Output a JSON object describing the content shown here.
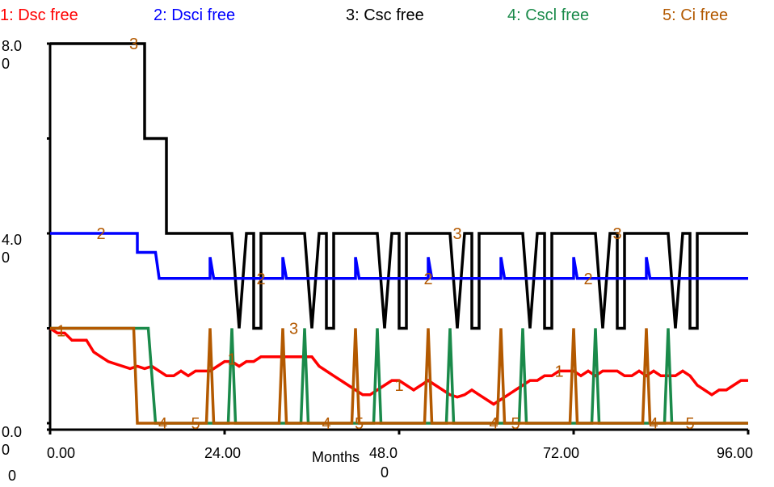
{
  "chart_data": {
    "type": "line",
    "legend": [
      {
        "label": "1: Dsc free",
        "color": "#ff0000"
      },
      {
        "label": "2: Dsci free",
        "color": "#0000ff"
      },
      {
        "label": "3: Csc free",
        "color": "#000000"
      },
      {
        "label": "4: Cscl free",
        "color": "#1a8a4a"
      },
      {
        "label": "5: Ci free",
        "color": "#b35900"
      }
    ],
    "xlabel": "Months",
    "xlim": [
      0,
      96
    ],
    "ylim": [
      0,
      8
    ],
    "y_ticks": [
      {
        "line1": "8.0",
        "line2": "0"
      },
      {
        "line1": "4.0",
        "line2": "0"
      },
      {
        "line1": "0.0",
        "line2": "0"
      }
    ],
    "x_ticks": [
      {
        "line1": "0.00",
        "line2": "0"
      },
      {
        "line1": "24.00",
        "line2": ""
      },
      {
        "line1": "48.0",
        "line2": "0"
      },
      {
        "line1": "72.00",
        "line2": ""
      },
      {
        "line1": "96.00",
        "line2": ""
      }
    ],
    "series": [
      {
        "name": "1: Dsc free",
        "marker": "1",
        "points": [
          [
            0,
            2
          ],
          [
            1,
            1.9
          ],
          [
            2,
            1.9
          ],
          [
            3,
            1.75
          ],
          [
            4,
            1.75
          ],
          [
            5,
            1.75
          ],
          [
            6,
            1.5
          ],
          [
            7,
            1.4
          ],
          [
            8,
            1.3
          ],
          [
            9,
            1.25
          ],
          [
            10,
            1.2
          ],
          [
            11,
            1.15
          ],
          [
            12,
            1.2
          ],
          [
            13,
            1.15
          ],
          [
            14,
            1.2
          ],
          [
            15,
            1.1
          ],
          [
            16,
            1
          ],
          [
            17,
            1
          ],
          [
            18,
            1.1
          ],
          [
            19,
            1
          ],
          [
            20,
            1.1
          ],
          [
            21,
            1.1
          ],
          [
            22,
            1.1
          ],
          [
            23,
            1.2
          ],
          [
            24,
            1.3
          ],
          [
            25,
            1.3
          ],
          [
            26,
            1.2
          ],
          [
            27,
            1.3
          ],
          [
            28,
            1.3
          ],
          [
            29,
            1.4
          ],
          [
            30,
            1.4
          ],
          [
            31,
            1.4
          ],
          [
            32,
            1.4
          ],
          [
            33,
            1.4
          ],
          [
            34,
            1.4
          ],
          [
            35,
            1.4
          ],
          [
            36,
            1.4
          ],
          [
            37,
            1.2
          ],
          [
            38,
            1.1
          ],
          [
            39,
            1
          ],
          [
            40,
            0.9
          ],
          [
            41,
            0.8
          ],
          [
            42,
            0.7
          ],
          [
            43,
            0.6
          ],
          [
            44,
            0.6
          ],
          [
            45,
            0.7
          ],
          [
            46,
            0.8
          ],
          [
            47,
            0.9
          ],
          [
            48,
            0.9
          ],
          [
            49,
            0.8
          ],
          [
            50,
            0.7
          ],
          [
            51,
            0.8
          ],
          [
            52,
            0.9
          ],
          [
            53,
            0.8
          ],
          [
            54,
            0.7
          ],
          [
            55,
            0.6
          ],
          [
            56,
            0.55
          ],
          [
            57,
            0.6
          ],
          [
            58,
            0.7
          ],
          [
            59,
            0.6
          ],
          [
            60,
            0.5
          ],
          [
            61,
            0.4
          ],
          [
            62,
            0.5
          ],
          [
            63,
            0.6
          ],
          [
            64,
            0.7
          ],
          [
            65,
            0.8
          ],
          [
            66,
            0.9
          ],
          [
            67,
            0.9
          ],
          [
            68,
            1
          ],
          [
            69,
            1
          ],
          [
            70,
            1.1
          ],
          [
            71,
            1.1
          ],
          [
            72,
            1.1
          ],
          [
            73,
            1
          ],
          [
            74,
            1.1
          ],
          [
            75,
            1
          ],
          [
            76,
            1.1
          ],
          [
            77,
            1.1
          ],
          [
            78,
            1.1
          ],
          [
            79,
            1
          ],
          [
            80,
            1
          ],
          [
            81,
            1.1
          ],
          [
            82,
            1
          ],
          [
            83,
            1.1
          ],
          [
            84,
            1
          ],
          [
            85,
            1
          ],
          [
            86,
            1
          ],
          [
            87,
            1.1
          ],
          [
            88,
            1
          ],
          [
            89,
            0.8
          ],
          [
            90,
            0.7
          ],
          [
            91,
            0.6
          ],
          [
            92,
            0.7
          ],
          [
            93,
            0.7
          ],
          [
            94,
            0.8
          ],
          [
            95,
            0.9
          ],
          [
            96,
            0.9
          ]
        ]
      },
      {
        "name": "2: Dsci free",
        "marker": "2",
        "points": [
          [
            0,
            4
          ],
          [
            12,
            4
          ],
          [
            12,
            3.6
          ],
          [
            14.5,
            3.6
          ],
          [
            15,
            3.05
          ],
          [
            22,
            3.05
          ],
          [
            22,
            3.5
          ],
          [
            22.5,
            3.05
          ],
          [
            32,
            3.05
          ],
          [
            32,
            3.5
          ],
          [
            32.5,
            3.05
          ],
          [
            42,
            3.05
          ],
          [
            42,
            3.5
          ],
          [
            42.5,
            3.05
          ],
          [
            52,
            3.05
          ],
          [
            52,
            3.5
          ],
          [
            52.5,
            3.05
          ],
          [
            62,
            3.05
          ],
          [
            62,
            3.5
          ],
          [
            62.5,
            3.05
          ],
          [
            72,
            3.05
          ],
          [
            72,
            3.5
          ],
          [
            72.5,
            3.05
          ],
          [
            82,
            3.05
          ],
          [
            82,
            3.5
          ],
          [
            82.5,
            3.05
          ],
          [
            96,
            3.05
          ]
        ]
      },
      {
        "name": "3: Csc free",
        "marker": "3",
        "points": [
          [
            0,
            8
          ],
          [
            13,
            8
          ],
          [
            13,
            6
          ],
          [
            16,
            6
          ],
          [
            16,
            4
          ],
          [
            25,
            4
          ],
          [
            26,
            2
          ],
          [
            27,
            4
          ],
          [
            28,
            4
          ],
          [
            28,
            2
          ],
          [
            29,
            2
          ],
          [
            29,
            4
          ],
          [
            35,
            4
          ],
          [
            36,
            2
          ],
          [
            37,
            4
          ],
          [
            38,
            4
          ],
          [
            38,
            2
          ],
          [
            39,
            2
          ],
          [
            39,
            4
          ],
          [
            45,
            4
          ],
          [
            46,
            2
          ],
          [
            47,
            4
          ],
          [
            48,
            4
          ],
          [
            48,
            2
          ],
          [
            49,
            2
          ],
          [
            49,
            4
          ],
          [
            55,
            4
          ],
          [
            56,
            2
          ],
          [
            57,
            4
          ],
          [
            58,
            4
          ],
          [
            58,
            2
          ],
          [
            59,
            2
          ],
          [
            59,
            4
          ],
          [
            65,
            4
          ],
          [
            66,
            2
          ],
          [
            67,
            4
          ],
          [
            68,
            4
          ],
          [
            68,
            2
          ],
          [
            69,
            2
          ],
          [
            69,
            4
          ],
          [
            75,
            4
          ],
          [
            76,
            2
          ],
          [
            77,
            4
          ],
          [
            78,
            4
          ],
          [
            78,
            2
          ],
          [
            79,
            2
          ],
          [
            79,
            4
          ],
          [
            85,
            4
          ],
          [
            86,
            2
          ],
          [
            87,
            4
          ],
          [
            88,
            4
          ],
          [
            88,
            2
          ],
          [
            89,
            2
          ],
          [
            89,
            4
          ],
          [
            96,
            4
          ]
        ]
      },
      {
        "name": "4: Cscl free",
        "marker": "4",
        "points": [
          [
            0,
            2
          ],
          [
            13.5,
            2
          ],
          [
            14.5,
            0
          ],
          [
            24.5,
            0
          ],
          [
            25,
            2
          ],
          [
            25.5,
            0
          ],
          [
            34.5,
            0
          ],
          [
            35,
            2
          ],
          [
            35.5,
            0
          ],
          [
            44.5,
            0
          ],
          [
            45,
            2
          ],
          [
            45.5,
            0
          ],
          [
            54.5,
            0
          ],
          [
            55,
            2
          ],
          [
            55.5,
            0
          ],
          [
            64.5,
            0
          ],
          [
            65,
            2
          ],
          [
            65.5,
            0
          ],
          [
            74.5,
            0
          ],
          [
            75,
            2
          ],
          [
            75.5,
            0
          ],
          [
            84.5,
            0
          ],
          [
            85,
            2
          ],
          [
            85.5,
            0
          ],
          [
            96,
            0
          ]
        ]
      },
      {
        "name": "5: Ci free",
        "marker": "5",
        "points": [
          [
            0,
            2
          ],
          [
            11.5,
            2
          ],
          [
            12,
            0
          ],
          [
            21.5,
            0
          ],
          [
            22,
            2
          ],
          [
            22.5,
            0
          ],
          [
            31.5,
            0
          ],
          [
            32,
            2
          ],
          [
            32.5,
            0
          ],
          [
            41.5,
            0
          ],
          [
            42,
            2
          ],
          [
            42.5,
            0
          ],
          [
            51.5,
            0
          ],
          [
            52,
            2
          ],
          [
            52.5,
            0
          ],
          [
            61.5,
            0
          ],
          [
            62,
            2
          ],
          [
            62.5,
            0
          ],
          [
            71.5,
            0
          ],
          [
            72,
            2
          ],
          [
            72.5,
            0
          ],
          [
            81.5,
            0
          ],
          [
            82,
            2
          ],
          [
            82.5,
            0
          ],
          [
            96,
            0
          ]
        ]
      }
    ],
    "markers": [
      {
        "series": 0,
        "x": 1.5,
        "y": 1.95
      },
      {
        "series": 0,
        "x": 25,
        "y": 1.35
      },
      {
        "series": 0,
        "x": 48,
        "y": 0.8
      },
      {
        "series": 0,
        "x": 70,
        "y": 1.1
      },
      {
        "series": 1,
        "x": 7,
        "y": 4
      },
      {
        "series": 1,
        "x": 29,
        "y": 3.05
      },
      {
        "series": 1,
        "x": 52,
        "y": 3.05
      },
      {
        "series": 1,
        "x": 74,
        "y": 3.05
      },
      {
        "series": 2,
        "x": 11.5,
        "y": 8
      },
      {
        "series": 2,
        "x": 33.5,
        "y": 2
      },
      {
        "series": 2,
        "x": 56,
        "y": 4
      },
      {
        "series": 2,
        "x": 78,
        "y": 4
      },
      {
        "series": 3,
        "x": 15.5,
        "y": 0
      },
      {
        "series": 3,
        "x": 38,
        "y": 0
      },
      {
        "series": 3,
        "x": 61,
        "y": 0
      },
      {
        "series": 3,
        "x": 83,
        "y": 0
      },
      {
        "series": 4,
        "x": 20,
        "y": 0
      },
      {
        "series": 4,
        "x": 42.5,
        "y": 0
      },
      {
        "series": 4,
        "x": 64,
        "y": 0
      },
      {
        "series": 4,
        "x": 88,
        "y": 0
      }
    ]
  }
}
